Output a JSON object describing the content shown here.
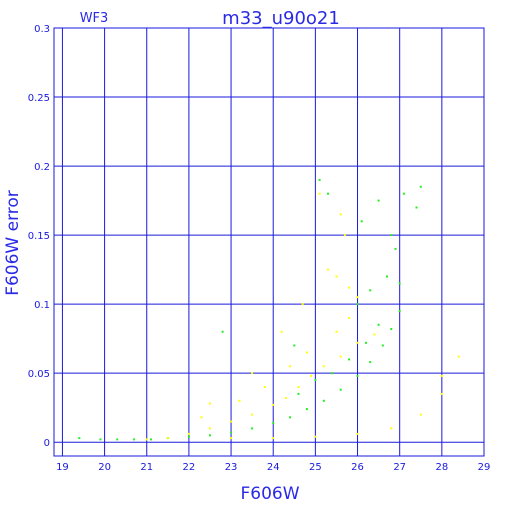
{
  "chart_data": {
    "type": "scatter",
    "title": "m33_u90o21",
    "panel_label": "WF3",
    "xlabel": "F606W",
    "ylabel": "F606W error",
    "xlim": [
      18.8,
      29.0
    ],
    "ylim": [
      -0.01,
      0.3
    ],
    "x_ticks": [
      19,
      20,
      21,
      22,
      23,
      24,
      25,
      26,
      27,
      28,
      29
    ],
    "x_tick_labels": [
      "19",
      "20",
      "21",
      "22",
      "23",
      "24",
      "25",
      "26",
      "27",
      "28",
      "29"
    ],
    "y_ticks": [
      0,
      0.05,
      0.1,
      0.15,
      0.2,
      0.25,
      0.3
    ],
    "y_tick_labels": [
      "0",
      "0.05",
      "0.1",
      "0.15",
      "0.2",
      "0.25",
      "0.3"
    ],
    "grid": true,
    "series": [
      {
        "color": "#22ee22",
        "points": [
          [
            19.4,
            0.003
          ],
          [
            19.9,
            0.002
          ],
          [
            20.3,
            0.002
          ],
          [
            20.7,
            0.002
          ],
          [
            21.1,
            0.002
          ],
          [
            21.5,
            0.003
          ],
          [
            22.0,
            0.004
          ],
          [
            22.5,
            0.005
          ],
          [
            23.0,
            0.007
          ],
          [
            23.5,
            0.01
          ],
          [
            24.0,
            0.014
          ],
          [
            24.4,
            0.018
          ],
          [
            24.8,
            0.024
          ],
          [
            25.2,
            0.03
          ],
          [
            25.6,
            0.038
          ],
          [
            26.0,
            0.048
          ],
          [
            26.3,
            0.058
          ],
          [
            26.6,
            0.07
          ],
          [
            26.8,
            0.082
          ],
          [
            27.0,
            0.095
          ],
          [
            24.6,
            0.035
          ],
          [
            25.0,
            0.045
          ],
          [
            25.4,
            0.05
          ],
          [
            25.8,
            0.06
          ],
          [
            26.2,
            0.072
          ],
          [
            26.5,
            0.085
          ],
          [
            25.1,
            0.19
          ],
          [
            25.3,
            0.18
          ],
          [
            26.5,
            0.175
          ],
          [
            27.1,
            0.18
          ],
          [
            27.5,
            0.185
          ],
          [
            26.1,
            0.16
          ],
          [
            26.8,
            0.15
          ],
          [
            26.9,
            0.14
          ],
          [
            27.0,
            0.115
          ],
          [
            26.7,
            0.12
          ],
          [
            26.0,
            0.1
          ],
          [
            26.3,
            0.11
          ],
          [
            22.8,
            0.08
          ],
          [
            24.5,
            0.07
          ],
          [
            27.4,
            0.17
          ]
        ]
      },
      {
        "color": "#ffff00",
        "points": [
          [
            21.0,
            0.002
          ],
          [
            21.5,
            0.003
          ],
          [
            22.0,
            0.006
          ],
          [
            22.5,
            0.01
          ],
          [
            23.0,
            0.015
          ],
          [
            23.5,
            0.02
          ],
          [
            24.0,
            0.027
          ],
          [
            24.3,
            0.032
          ],
          [
            24.6,
            0.04
          ],
          [
            24.9,
            0.048
          ],
          [
            25.2,
            0.055
          ],
          [
            25.6,
            0.062
          ],
          [
            26.0,
            0.072
          ],
          [
            26.4,
            0.078
          ],
          [
            22.3,
            0.018
          ],
          [
            23.2,
            0.03
          ],
          [
            23.8,
            0.04
          ],
          [
            24.4,
            0.055
          ],
          [
            24.8,
            0.065
          ],
          [
            25.5,
            0.08
          ],
          [
            25.8,
            0.09
          ],
          [
            23.0,
            0.003
          ],
          [
            24.0,
            0.003
          ],
          [
            25.0,
            0.004
          ],
          [
            26.0,
            0.006
          ],
          [
            26.8,
            0.01
          ],
          [
            27.5,
            0.02
          ],
          [
            28.0,
            0.035
          ],
          [
            28.4,
            0.062
          ],
          [
            28.0,
            0.048
          ],
          [
            25.1,
            0.18
          ],
          [
            25.6,
            0.165
          ],
          [
            25.7,
            0.15
          ],
          [
            25.3,
            0.125
          ],
          [
            25.8,
            0.112
          ],
          [
            26.0,
            0.105
          ],
          [
            25.5,
            0.12
          ],
          [
            24.2,
            0.08
          ],
          [
            23.5,
            0.05
          ],
          [
            22.5,
            0.028
          ],
          [
            24.7,
            0.1
          ]
        ]
      }
    ]
  }
}
